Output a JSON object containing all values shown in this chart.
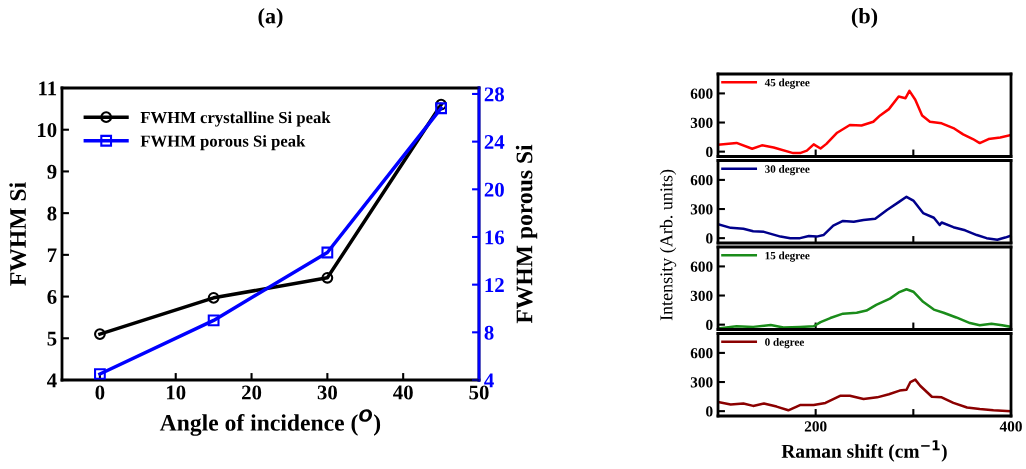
{
  "chart_data": [
    {
      "type": "line",
      "title": "(a)",
      "xlabel": "Angle of incidence ($^{O}$)",
      "ylabel": "FWHM Si",
      "y2label": "FWHM porous Si",
      "x": [
        0,
        15,
        30,
        45
      ],
      "series": [
        {
          "name": "FWHM crystalline Si peak",
          "color": "#000000",
          "marker": "circle",
          "values": [
            5.1,
            5.97,
            6.45,
            10.6
          ]
        },
        {
          "name": "FWHM porous Si peak",
          "color": "#0000ff",
          "marker": "square",
          "axis": "y2",
          "values": [
            4.5,
            9.0,
            14.7,
            26.8
          ]
        }
      ],
      "xlim": [
        -5,
        50
      ],
      "xticks": [
        0,
        10,
        20,
        30,
        40,
        50
      ],
      "ylim": [
        4,
        11
      ],
      "yticks": [
        4,
        5,
        6,
        7,
        8,
        9,
        10,
        11
      ],
      "y2lim": [
        4,
        28.5
      ],
      "y2ticks": [
        4,
        8,
        12,
        16,
        20,
        24,
        28
      ],
      "legend": "top left",
      "grid": false
    },
    {
      "type": "line",
      "title": "(b)",
      "ylabel": "Intensity (Arb. units)",
      "xlim": [
        100,
        400
      ],
      "xticks": [
        {
          "value": 200,
          "label": null
        },
        {
          "value": 300,
          "label": null
        },
        {
          "value": 400,
          "label": null
        }
      ],
      "ylim": [
        -50,
        800
      ],
      "yticks": [
        0,
        300,
        600
      ],
      "tick_labels": "y",
      "legend": "top left",
      "grid": false,
      "series": [
        {
          "name": "45 degree",
          "color": "#ff0000",
          "x": [
            100,
            119,
            135,
            145,
            157,
            177,
            184,
            191,
            198,
            205,
            211,
            222,
            235,
            247,
            259,
            266,
            275,
            285,
            292,
            296,
            302,
            309,
            317,
            329,
            341,
            351,
            361,
            368,
            377,
            389,
            400
          ],
          "values": [
            70,
            90,
            30,
            65,
            42,
            -15,
            -15,
            10,
            75,
            32,
            80,
            195,
            275,
            270,
            308,
            373,
            438,
            568,
            551,
            626,
            535,
            373,
            308,
            292,
            243,
            178,
            130,
            88,
            130,
            146,
            172
          ]
        }
      ]
    },
    {
      "type": "line",
      "xlim": [
        100,
        400
      ],
      "xticks": [
        {
          "value": 200,
          "label": null
        },
        {
          "value": 300,
          "label": null
        },
        {
          "value": 400,
          "label": null
        }
      ],
      "ylim": [
        -50,
        800
      ],
      "yticks": [
        0,
        300,
        600
      ],
      "tick_labels": "y",
      "legend": "top left",
      "grid": false,
      "series": [
        {
          "name": "30 degree",
          "color": "#00008b",
          "x": [
            100,
            113,
            126,
            136,
            147,
            164,
            174,
            184,
            193,
            201,
            208,
            218,
            228,
            239,
            249,
            261,
            273,
            285,
            293,
            300,
            310,
            321,
            327,
            329,
            341,
            353,
            365,
            375,
            386,
            394,
            400
          ],
          "values": [
            145,
            106,
            97,
            71,
            65,
            16,
            0,
            0,
            23,
            16,
            32,
            129,
            177,
            168,
            187,
            200,
            290,
            371,
            426,
            387,
            258,
            210,
            135,
            161,
            113,
            81,
            32,
            0,
            -16,
            6,
            26
          ]
        }
      ]
    },
    {
      "type": "line",
      "xlim": [
        100,
        400
      ],
      "xticks": [
        {
          "value": 200,
          "label": null
        },
        {
          "value": 300,
          "label": null
        },
        {
          "value": 400,
          "label": null
        }
      ],
      "ylim": [
        -50,
        800
      ],
      "yticks": [
        0,
        300,
        600
      ],
      "tick_labels": "y",
      "legend": "top left",
      "grid": false,
      "series": [
        {
          "name": "15 degree",
          "color": "#1a8c1a",
          "x": [
            100,
            119,
            136,
            154,
            167,
            184,
            198,
            205,
            215,
            228,
            242,
            252,
            262,
            276,
            285,
            293,
            300,
            310,
            321,
            331,
            344,
            358,
            368,
            380,
            391,
            400
          ],
          "values": [
            -39,
            -16,
            -23,
            -3,
            -29,
            -23,
            -16,
            26,
            68,
            113,
            123,
            145,
            203,
            268,
            332,
            365,
            339,
            235,
            155,
            123,
            74,
            16,
            -6,
            10,
            -6,
            -23
          ]
        }
      ]
    },
    {
      "type": "line",
      "xlabel": "Raman shift (cm$^{−1}$)",
      "xlim": [
        100,
        400
      ],
      "xticks": [
        200,
        {
          "value": 300,
          "label": null
        },
        400
      ],
      "ylim": [
        -50,
        800
      ],
      "yticks": [
        0,
        300,
        600
      ],
      "legend": "top left",
      "grid": false,
      "series": [
        {
          "name": "0 degree",
          "color": "#8b0000",
          "x": [
            100,
            113,
            126,
            136,
            147,
            160,
            172,
            184,
            198,
            210,
            225,
            235,
            249,
            263,
            275,
            286,
            293,
            297,
            302,
            307,
            319,
            329,
            341,
            355,
            368,
            382,
            400
          ],
          "values": [
            95,
            69,
            79,
            54,
            79,
            47,
            9,
            63,
            63,
            85,
            158,
            158,
            126,
            142,
            174,
            212,
            221,
            300,
            325,
            262,
            148,
            142,
            85,
            38,
            22,
            9,
            0
          ]
        }
      ]
    }
  ]
}
